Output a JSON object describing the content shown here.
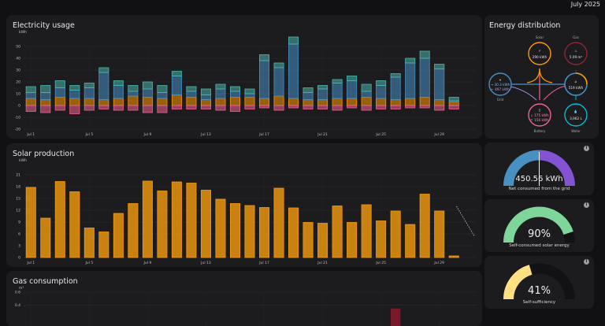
{
  "header": {
    "date_label": "July 2025"
  },
  "x_ticks": [
    "Jul 1",
    "Jul 5",
    "Jul 9",
    "Jul 13",
    "Jul 17",
    "Jul 21",
    "Jul 25",
    "Jul 29"
  ],
  "chart_data": [
    {
      "type": "bar",
      "title": "Electricity usage",
      "unit": "kWh",
      "ylim": [
        -20,
        50
      ],
      "y_ticks": [
        50,
        40,
        30,
        20,
        10,
        0,
        -10,
        -20
      ],
      "colors": {
        "grid": "#488fc2",
        "solar": "#ff9800",
        "battery_in": "#f06292",
        "battery_out": "#4db6ac"
      },
      "days": 31,
      "series": [
        {
          "key": "grid",
          "values": [
            5,
            6,
            8,
            7,
            9,
            23,
            11,
            4,
            7,
            5,
            16,
            5,
            4,
            8,
            5,
            3,
            32,
            24,
            46,
            6,
            9,
            13,
            15,
            5,
            11,
            19,
            30,
            33,
            26,
            1,
            0
          ]
        },
        {
          "key": "solar",
          "values": [
            6,
            5,
            7,
            6,
            6,
            5,
            6,
            8,
            7,
            6,
            9,
            7,
            5,
            6,
            7,
            7,
            6,
            8,
            6,
            5,
            5,
            6,
            6,
            7,
            6,
            5,
            6,
            7,
            5,
            3,
            0
          ]
        },
        {
          "key": "battery_out",
          "values": [
            5,
            6,
            6,
            4,
            4,
            4,
            4,
            5,
            6,
            6,
            4,
            4,
            5,
            4,
            4,
            4,
            5,
            4,
            6,
            4,
            3,
            3,
            4,
            6,
            4,
            3,
            4,
            6,
            4,
            3,
            0
          ]
        },
        {
          "key": "battery_in",
          "values": [
            -5,
            -6,
            -4,
            -7,
            -4,
            -3,
            -4,
            -4,
            -6,
            -6,
            -3,
            -3,
            -3,
            -4,
            -5,
            -3,
            -2,
            -4,
            -2,
            -3,
            -3,
            -4,
            -2,
            -4,
            -3,
            -3,
            -2,
            -2,
            -4,
            -3,
            0
          ]
        }
      ]
    },
    {
      "type": "bar",
      "title": "Solar production",
      "unit": "kWh",
      "ylim": [
        0,
        21
      ],
      "y_ticks": [
        21,
        18,
        15,
        12,
        9,
        6,
        3,
        0
      ],
      "color": "#f59b0f",
      "values": [
        17.8,
        10,
        19.3,
        16.7,
        7.5,
        6.5,
        11.2,
        13.7,
        19.4,
        16.9,
        19.2,
        18.9,
        17.1,
        14.8,
        13.7,
        13.2,
        12.7,
        17.6,
        12.6,
        8.9,
        8.7,
        13.1,
        8.9,
        13.4,
        9.3,
        11.8,
        8.4,
        16.1,
        11.8,
        0.4
      ]
    },
    {
      "type": "bar",
      "title": "Gas consumption",
      "unit": "m³",
      "ylim": [
        0,
        0.6
      ],
      "y_ticks": [
        0.6,
        0.4
      ],
      "color": "#8b1a2b",
      "values": [
        0,
        0,
        0,
        0,
        0,
        0,
        0,
        0,
        0,
        0,
        0,
        0,
        0,
        0,
        0,
        0,
        0,
        0,
        0,
        0,
        0,
        0,
        0,
        0,
        0,
        0.35,
        0,
        0,
        0,
        0,
        0
      ]
    }
  ],
  "energy_distribution": {
    "title": "Energy distribution",
    "solar": {
      "label": "Solar",
      "value": "290 kWh",
      "color": "#ff9800"
    },
    "gas": {
      "label": "Gas",
      "value": "5.09 m³",
      "color": "#8e2434"
    },
    "grid": {
      "label": "Grid",
      "value_in": "→ 30.3 kWh",
      "value_out": "← 497 kWh",
      "color": "#488fc2"
    },
    "home": {
      "value": "519 kWh",
      "color": "#488fc2"
    },
    "battery": {
      "label": "Battery",
      "value_in": "↓ 175 kWh",
      "value_out": "↑ 156 kWh",
      "color": "#f06292"
    },
    "water": {
      "label": "Water",
      "value": "3,962 L",
      "color": "#00bcd4"
    }
  },
  "gauges": [
    {
      "value_label": "450.56 kWh",
      "caption": "Net consumed from the grid",
      "fraction": 0.5,
      "colors": [
        "#488fc2",
        "#8353d4"
      ]
    },
    {
      "value_label": "90%",
      "caption": "Self-consumed solar energy",
      "fraction": 0.9,
      "colors": [
        "#7ed69a"
      ]
    },
    {
      "value_label": "41%",
      "caption": "Self-sufficiency",
      "fraction": 0.41,
      "colors": [
        "#ffe082"
      ]
    }
  ]
}
